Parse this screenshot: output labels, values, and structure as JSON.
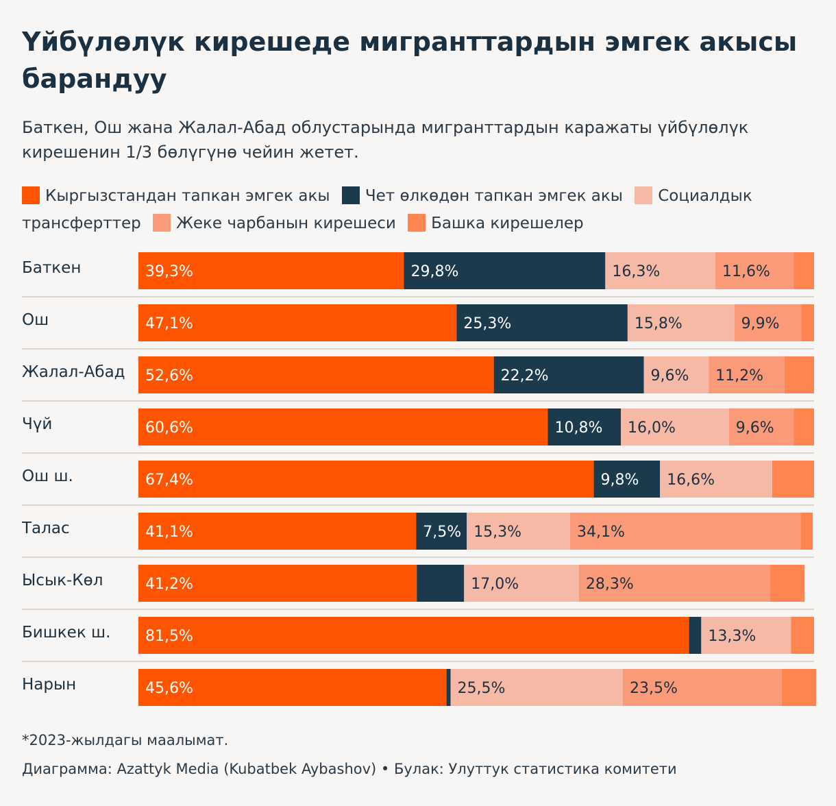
{
  "title": "Үйбүлөлүк кирешеде мигранттардын эмгек акысы барандуу",
  "subtitle": "Баткен, Ош жана Жалал-Абад облустарында мигранттардын каражаты үйбүлөлүк кирешенин 1/3 бөлүгүнө чейин жетет.",
  "legend": [
    {
      "label": "Кыргызстандан тапкан эмгек акы",
      "color": "#ff5500"
    },
    {
      "label": "Чет өлкөдөн тапкан эмгек акы",
      "color": "#1b3a4c"
    },
    {
      "label": "Социалдык трансферттер",
      "color": "#f5b9a6"
    },
    {
      "label": "Жеке чарбанын кирешеси",
      "color": "#fb9a78"
    },
    {
      "label": "Башка кирешелер",
      "color": "#ff8550"
    }
  ],
  "chart_data": {
    "type": "bar",
    "orientation": "horizontal",
    "stacked": true,
    "categories": [
      "Баткен",
      "Ош",
      "Жалал-Абад",
      "Чүй",
      "Ош ш.",
      "Талас",
      "Ысык-Көл",
      "Бишкек ш.",
      "Нарын"
    ],
    "series": [
      {
        "name": "Кыргызстандан тапкан эмгек акы",
        "color": "#ff5500",
        "values": [
          39.3,
          47.1,
          52.6,
          60.6,
          67.4,
          41.1,
          41.2,
          81.5,
          45.6
        ]
      },
      {
        "name": "Чет өлкөдөн тапкан эмгек акы",
        "color": "#1b3a4c",
        "values": [
          29.8,
          25.3,
          22.2,
          10.8,
          9.8,
          7.5,
          7.0,
          1.8,
          0.6
        ]
      },
      {
        "name": "Социалдык трансферттер",
        "color": "#f5b9a6",
        "values": [
          16.3,
          15.8,
          9.6,
          16.0,
          16.6,
          15.3,
          17.0,
          13.3,
          25.5
        ]
      },
      {
        "name": "Жеке чарбанын кирешеси",
        "color": "#fb9a78",
        "values": [
          11.6,
          9.9,
          11.2,
          9.6,
          0,
          34.1,
          28.3,
          0,
          23.5
        ]
      },
      {
        "name": "Башка кирешелер",
        "color": "#ff8550",
        "values": [
          3.0,
          1.9,
          4.4,
          3.0,
          6.2,
          1.8,
          5.1,
          3.4,
          5.1
        ]
      }
    ],
    "value_labels": [
      [
        "39,3%",
        "29,8%",
        "16,3%",
        "11,6%",
        ""
      ],
      [
        "47,1%",
        "25,3%",
        "15,8%",
        "9,9%",
        ""
      ],
      [
        "52,6%",
        "22,2%",
        "9,6%",
        "11,2%",
        ""
      ],
      [
        "60,6%",
        "10,8%",
        "16,0%",
        "9,6%",
        ""
      ],
      [
        "67,4%",
        "9,8%",
        "16,6%",
        "",
        ""
      ],
      [
        "41,1%",
        "7,5%",
        "15,3%",
        "34,1%",
        ""
      ],
      [
        "41,2%",
        "",
        "17,0%",
        "28,3%",
        ""
      ],
      [
        "81,5%",
        "",
        "13,3%",
        "",
        ""
      ],
      [
        "45,6%",
        "",
        "25,5%",
        "23,5%",
        ""
      ]
    ],
    "xlim": [
      0,
      100
    ],
    "unit": "%"
  },
  "footnote": "*2023-жылдагы маалымат.",
  "credits": "Диаграмма: Azattyk Media (Kubatbek Aybashov) • Булак: Улуттук статистика комитети"
}
